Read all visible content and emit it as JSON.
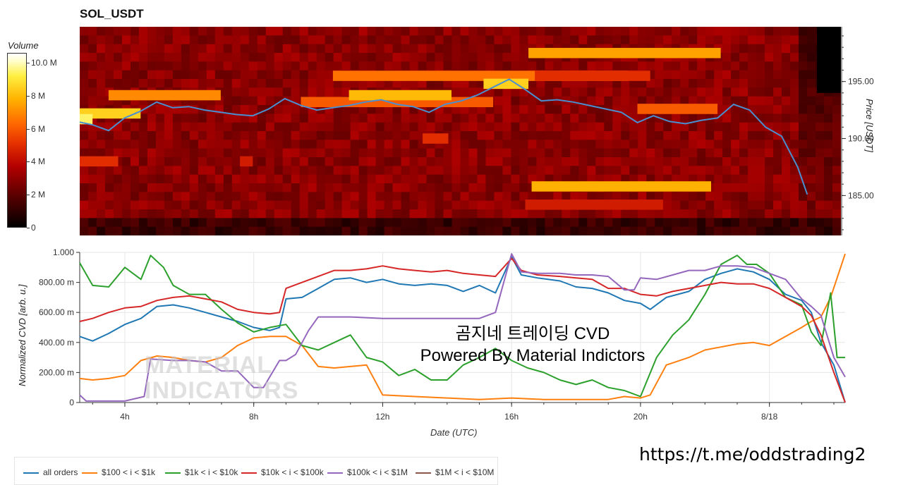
{
  "title": "SOL_USDT",
  "watermark": {
    "line1": "MATERIAL",
    "line2": "INDICATORS"
  },
  "overlay_text": {
    "line1": "곰지네 트레이딩 CVD",
    "line2": "Powered By Material Indictors"
  },
  "link": "https://t.me/oddstrading2",
  "chart_data": [
    {
      "type": "heatmap",
      "ylabel": "Price [USDT]",
      "ylim": [
        181.5,
        199.8
      ],
      "y_ticks": [
        {
          "v": 195,
          "label": "195.00"
        },
        {
          "v": 190,
          "label": "190.00"
        },
        {
          "v": 185,
          "label": "185.00"
        }
      ],
      "colorbar": {
        "title": "Volume",
        "ticks": [
          {
            "v": 0,
            "label": "0"
          },
          {
            "v": 2,
            "label": "2 M"
          },
          {
            "v": 4,
            "label": "4 M"
          },
          {
            "v": 6,
            "label": "6 M"
          },
          {
            "v": 8,
            "label": "8 M"
          },
          {
            "v": 10,
            "label": "10.0 M"
          }
        ],
        "max": 10.6
      },
      "liquidity_bands": [
        {
          "price": 197.5,
          "start": 16.6,
          "end": 22.6,
          "level": 7.5
        },
        {
          "price": 195.5,
          "start": 10.5,
          "end": 19.7,
          "level": 6.5
        },
        {
          "price": 195.5,
          "start": 16.8,
          "end": 20.4,
          "level": 5.0
        },
        {
          "price": 193.8,
          "start": 3.5,
          "end": 7.0,
          "level": 7.0
        },
        {
          "price": 193.2,
          "start": 9.5,
          "end": 15.5,
          "level": 6.0
        },
        {
          "price": 193.8,
          "start": 11.0,
          "end": 14.2,
          "level": 8.0
        },
        {
          "price": 192.2,
          "start": 2.5,
          "end": 4.5,
          "level": 8.5
        },
        {
          "price": 191.7,
          "start": 2.5,
          "end": 3.0,
          "level": 9.5
        },
        {
          "price": 192.6,
          "start": 20.0,
          "end": 22.5,
          "level": 6.0
        },
        {
          "price": 190.0,
          "start": 13.3,
          "end": 14.1,
          "level": 5.0
        },
        {
          "price": 188.0,
          "start": 2.5,
          "end": 3.8,
          "level": 5.0
        },
        {
          "price": 188.0,
          "start": 7.6,
          "end": 8.0,
          "level": 4.5
        },
        {
          "price": 185.8,
          "start": 16.7,
          "end": 22.3,
          "level": 7.8
        },
        {
          "price": 184.2,
          "start": 16.5,
          "end": 20.8,
          "level": 4.5
        },
        {
          "price": 194.8,
          "start": 15.2,
          "end": 16.6,
          "level": 8.5
        }
      ],
      "price_line": {
        "x": [
          2.5,
          3.0,
          3.5,
          4.0,
          4.5,
          5.0,
          5.5,
          6.0,
          6.5,
          7.0,
          7.5,
          8.0,
          8.5,
          9.0,
          9.5,
          10.0,
          10.5,
          11.0,
          11.5,
          12.0,
          12.5,
          13.0,
          13.5,
          14.0,
          14.5,
          15.0,
          15.5,
          16.0,
          16.5,
          17.0,
          17.5,
          18.0,
          18.5,
          19.0,
          19.5,
          20.0,
          20.5,
          21.0,
          21.5,
          22.0,
          22.5,
          23.0,
          23.5,
          24.0,
          24.5,
          25.0,
          25.3
        ],
        "y": [
          191.5,
          191.2,
          190.7,
          191.8,
          192.4,
          193.2,
          192.7,
          192.8,
          192.5,
          192.3,
          192.1,
          192.0,
          192.6,
          193.5,
          192.9,
          192.5,
          192.7,
          192.9,
          193.2,
          193.4,
          193.0,
          192.8,
          192.3,
          193.0,
          193.3,
          193.8,
          194.5,
          195.2,
          194.3,
          193.3,
          193.4,
          193.2,
          192.9,
          192.6,
          192.3,
          191.4,
          192.0,
          191.5,
          191.3,
          191.6,
          191.8,
          193.0,
          192.5,
          191.0,
          190.2,
          187.5,
          185.1
        ]
      },
      "x_range": [
        2.6,
        26.35
      ]
    },
    {
      "type": "line",
      "xlabel": "Date (UTC)",
      "ylabel": "Normalized CVD [arb. u.]",
      "ylim": [
        0,
        1.0
      ],
      "y_ticks": [
        {
          "v": 0,
          "label": "0"
        },
        {
          "v": 0.2,
          "label": "200.00 m"
        },
        {
          "v": 0.4,
          "label": "400.00 m"
        },
        {
          "v": 0.6,
          "label": "600.00 m"
        },
        {
          "v": 0.8,
          "label": "800.00 m"
        },
        {
          "v": 1.0,
          "label": "1.000"
        }
      ],
      "x_range": [
        2.6,
        26.35
      ],
      "x_ticks": [
        {
          "v": 4,
          "label": "4h"
        },
        {
          "v": 8,
          "label": "8h"
        },
        {
          "v": 12,
          "label": "12h"
        },
        {
          "v": 16,
          "label": "16h"
        },
        {
          "v": 20,
          "label": "20h"
        },
        {
          "v": 24,
          "label": "8/18"
        }
      ],
      "series": [
        {
          "name": "all orders",
          "color": "#1f77b4",
          "x": [
            2.6,
            3.0,
            3.5,
            4.0,
            4.5,
            5.0,
            5.5,
            6.0,
            6.5,
            7.0,
            7.5,
            8.0,
            8.5,
            8.8,
            9.0,
            9.5,
            10.0,
            10.5,
            11.0,
            11.5,
            12.0,
            12.5,
            13.0,
            13.5,
            14.0,
            14.5,
            15.0,
            15.5,
            16.0,
            16.3,
            16.8,
            17.5,
            18.0,
            18.5,
            19.0,
            19.5,
            20.0,
            20.3,
            20.8,
            21.5,
            22.0,
            22.5,
            23.0,
            23.5,
            24.0,
            24.5,
            25.0,
            25.3,
            25.6,
            26.0,
            26.35
          ],
          "y": [
            0.44,
            0.41,
            0.46,
            0.52,
            0.56,
            0.64,
            0.65,
            0.63,
            0.6,
            0.57,
            0.54,
            0.5,
            0.48,
            0.5,
            0.69,
            0.7,
            0.76,
            0.82,
            0.83,
            0.8,
            0.82,
            0.79,
            0.78,
            0.79,
            0.78,
            0.74,
            0.78,
            0.73,
            0.97,
            0.85,
            0.83,
            0.81,
            0.77,
            0.76,
            0.73,
            0.68,
            0.66,
            0.62,
            0.7,
            0.74,
            0.82,
            0.86,
            0.89,
            0.87,
            0.82,
            0.72,
            0.68,
            0.6,
            0.4,
            0.25,
            0.0
          ]
        },
        {
          "name": "$100 < i < $1k",
          "color": "#ff7f0e",
          "x": [
            2.6,
            3.0,
            3.5,
            4.0,
            4.5,
            5.0,
            5.5,
            6.0,
            6.5,
            7.0,
            7.5,
            8.0,
            8.5,
            9.0,
            9.5,
            10.0,
            10.5,
            11.0,
            11.5,
            12.0,
            13.0,
            14.0,
            15.0,
            16.0,
            17.0,
            18.0,
            19.0,
            19.5,
            20.0,
            20.3,
            20.8,
            21.5,
            22.0,
            22.5,
            23.0,
            23.5,
            24.0,
            24.5,
            25.0,
            25.3,
            25.6,
            25.9,
            26.35
          ],
          "y": [
            0.16,
            0.15,
            0.16,
            0.18,
            0.28,
            0.31,
            0.3,
            0.28,
            0.27,
            0.3,
            0.38,
            0.43,
            0.44,
            0.44,
            0.38,
            0.24,
            0.23,
            0.24,
            0.25,
            0.05,
            0.04,
            0.03,
            0.02,
            0.03,
            0.02,
            0.02,
            0.02,
            0.04,
            0.03,
            0.05,
            0.25,
            0.3,
            0.35,
            0.37,
            0.39,
            0.4,
            0.38,
            0.44,
            0.5,
            0.54,
            0.57,
            0.7,
            0.99
          ]
        },
        {
          "name": "$1k < i < $10k",
          "color": "#2ca02c",
          "x": [
            2.6,
            3.0,
            3.5,
            4.0,
            4.5,
            4.8,
            5.2,
            5.5,
            6.0,
            6.5,
            7.0,
            7.5,
            8.0,
            8.5,
            9.0,
            9.5,
            10.0,
            10.5,
            11.0,
            11.5,
            12.0,
            12.5,
            13.0,
            13.5,
            14.0,
            14.5,
            15.0,
            15.5,
            16.0,
            16.5,
            17.0,
            17.5,
            18.0,
            18.5,
            19.0,
            19.5,
            20.0,
            20.5,
            21.0,
            21.5,
            22.0,
            22.5,
            23.0,
            23.3,
            23.6,
            24.0,
            24.5,
            25.0,
            25.3,
            25.6,
            25.9,
            26.1,
            26.35
          ],
          "y": [
            0.93,
            0.78,
            0.77,
            0.9,
            0.82,
            0.98,
            0.9,
            0.78,
            0.72,
            0.72,
            0.62,
            0.53,
            0.47,
            0.5,
            0.52,
            0.38,
            0.35,
            0.4,
            0.45,
            0.3,
            0.27,
            0.18,
            0.22,
            0.15,
            0.15,
            0.25,
            0.3,
            0.36,
            0.28,
            0.23,
            0.2,
            0.15,
            0.12,
            0.15,
            0.1,
            0.08,
            0.04,
            0.3,
            0.45,
            0.55,
            0.72,
            0.92,
            0.98,
            0.92,
            0.92,
            0.86,
            0.7,
            0.65,
            0.47,
            0.38,
            0.73,
            0.3,
            0.3
          ]
        },
        {
          "name": "$10k < i < $100k",
          "color": "#d62728",
          "x": [
            2.6,
            3.0,
            3.5,
            4.0,
            4.5,
            5.0,
            5.5,
            6.0,
            6.5,
            7.0,
            7.5,
            8.0,
            8.5,
            8.8,
            9.0,
            9.5,
            10.0,
            10.5,
            11.0,
            11.5,
            12.0,
            12.5,
            13.0,
            13.5,
            14.0,
            14.5,
            15.0,
            15.5,
            16.0,
            16.3,
            16.8,
            17.5,
            18.0,
            18.5,
            19.0,
            19.5,
            20.0,
            20.5,
            21.0,
            21.5,
            22.0,
            22.5,
            23.0,
            23.5,
            24.0,
            24.5,
            25.0,
            25.3,
            25.6,
            26.0,
            26.35
          ],
          "y": [
            0.54,
            0.56,
            0.6,
            0.63,
            0.64,
            0.68,
            0.7,
            0.71,
            0.69,
            0.67,
            0.62,
            0.6,
            0.59,
            0.6,
            0.76,
            0.8,
            0.84,
            0.88,
            0.88,
            0.89,
            0.91,
            0.89,
            0.88,
            0.87,
            0.88,
            0.86,
            0.85,
            0.84,
            0.96,
            0.88,
            0.85,
            0.84,
            0.83,
            0.82,
            0.76,
            0.76,
            0.72,
            0.71,
            0.74,
            0.76,
            0.78,
            0.8,
            0.79,
            0.79,
            0.76,
            0.7,
            0.64,
            0.58,
            0.45,
            0.2,
            0.0
          ]
        },
        {
          "name": "$100k < i < $1M",
          "color": "#9467bd",
          "x": [
            2.6,
            2.8,
            3.0,
            4.0,
            4.6,
            4.8,
            5.5,
            6.0,
            6.5,
            7.0,
            7.5,
            8.0,
            8.3,
            8.8,
            9.0,
            9.3,
            9.7,
            10.0,
            11.0,
            12.0,
            13.0,
            14.0,
            15.0,
            15.5,
            16.0,
            16.3,
            16.8,
            17.5,
            18.0,
            18.5,
            19.0,
            19.5,
            19.8,
            20.0,
            20.5,
            21.0,
            21.5,
            22.0,
            22.5,
            23.0,
            23.5,
            24.0,
            24.5,
            25.0,
            25.3,
            25.6,
            26.0,
            26.35
          ],
          "y": [
            0.05,
            0.01,
            0.01,
            0.01,
            0.04,
            0.29,
            0.28,
            0.28,
            0.27,
            0.21,
            0.21,
            0.1,
            0.1,
            0.28,
            0.28,
            0.32,
            0.48,
            0.57,
            0.57,
            0.56,
            0.56,
            0.56,
            0.56,
            0.6,
            0.99,
            0.87,
            0.86,
            0.86,
            0.85,
            0.85,
            0.84,
            0.75,
            0.75,
            0.83,
            0.82,
            0.85,
            0.88,
            0.88,
            0.91,
            0.91,
            0.9,
            0.86,
            0.82,
            0.69,
            0.64,
            0.58,
            0.3,
            0.17
          ]
        },
        {
          "name": "$1M < i < $10M",
          "color": "#8c564b",
          "x": [],
          "y": []
        }
      ]
    }
  ]
}
